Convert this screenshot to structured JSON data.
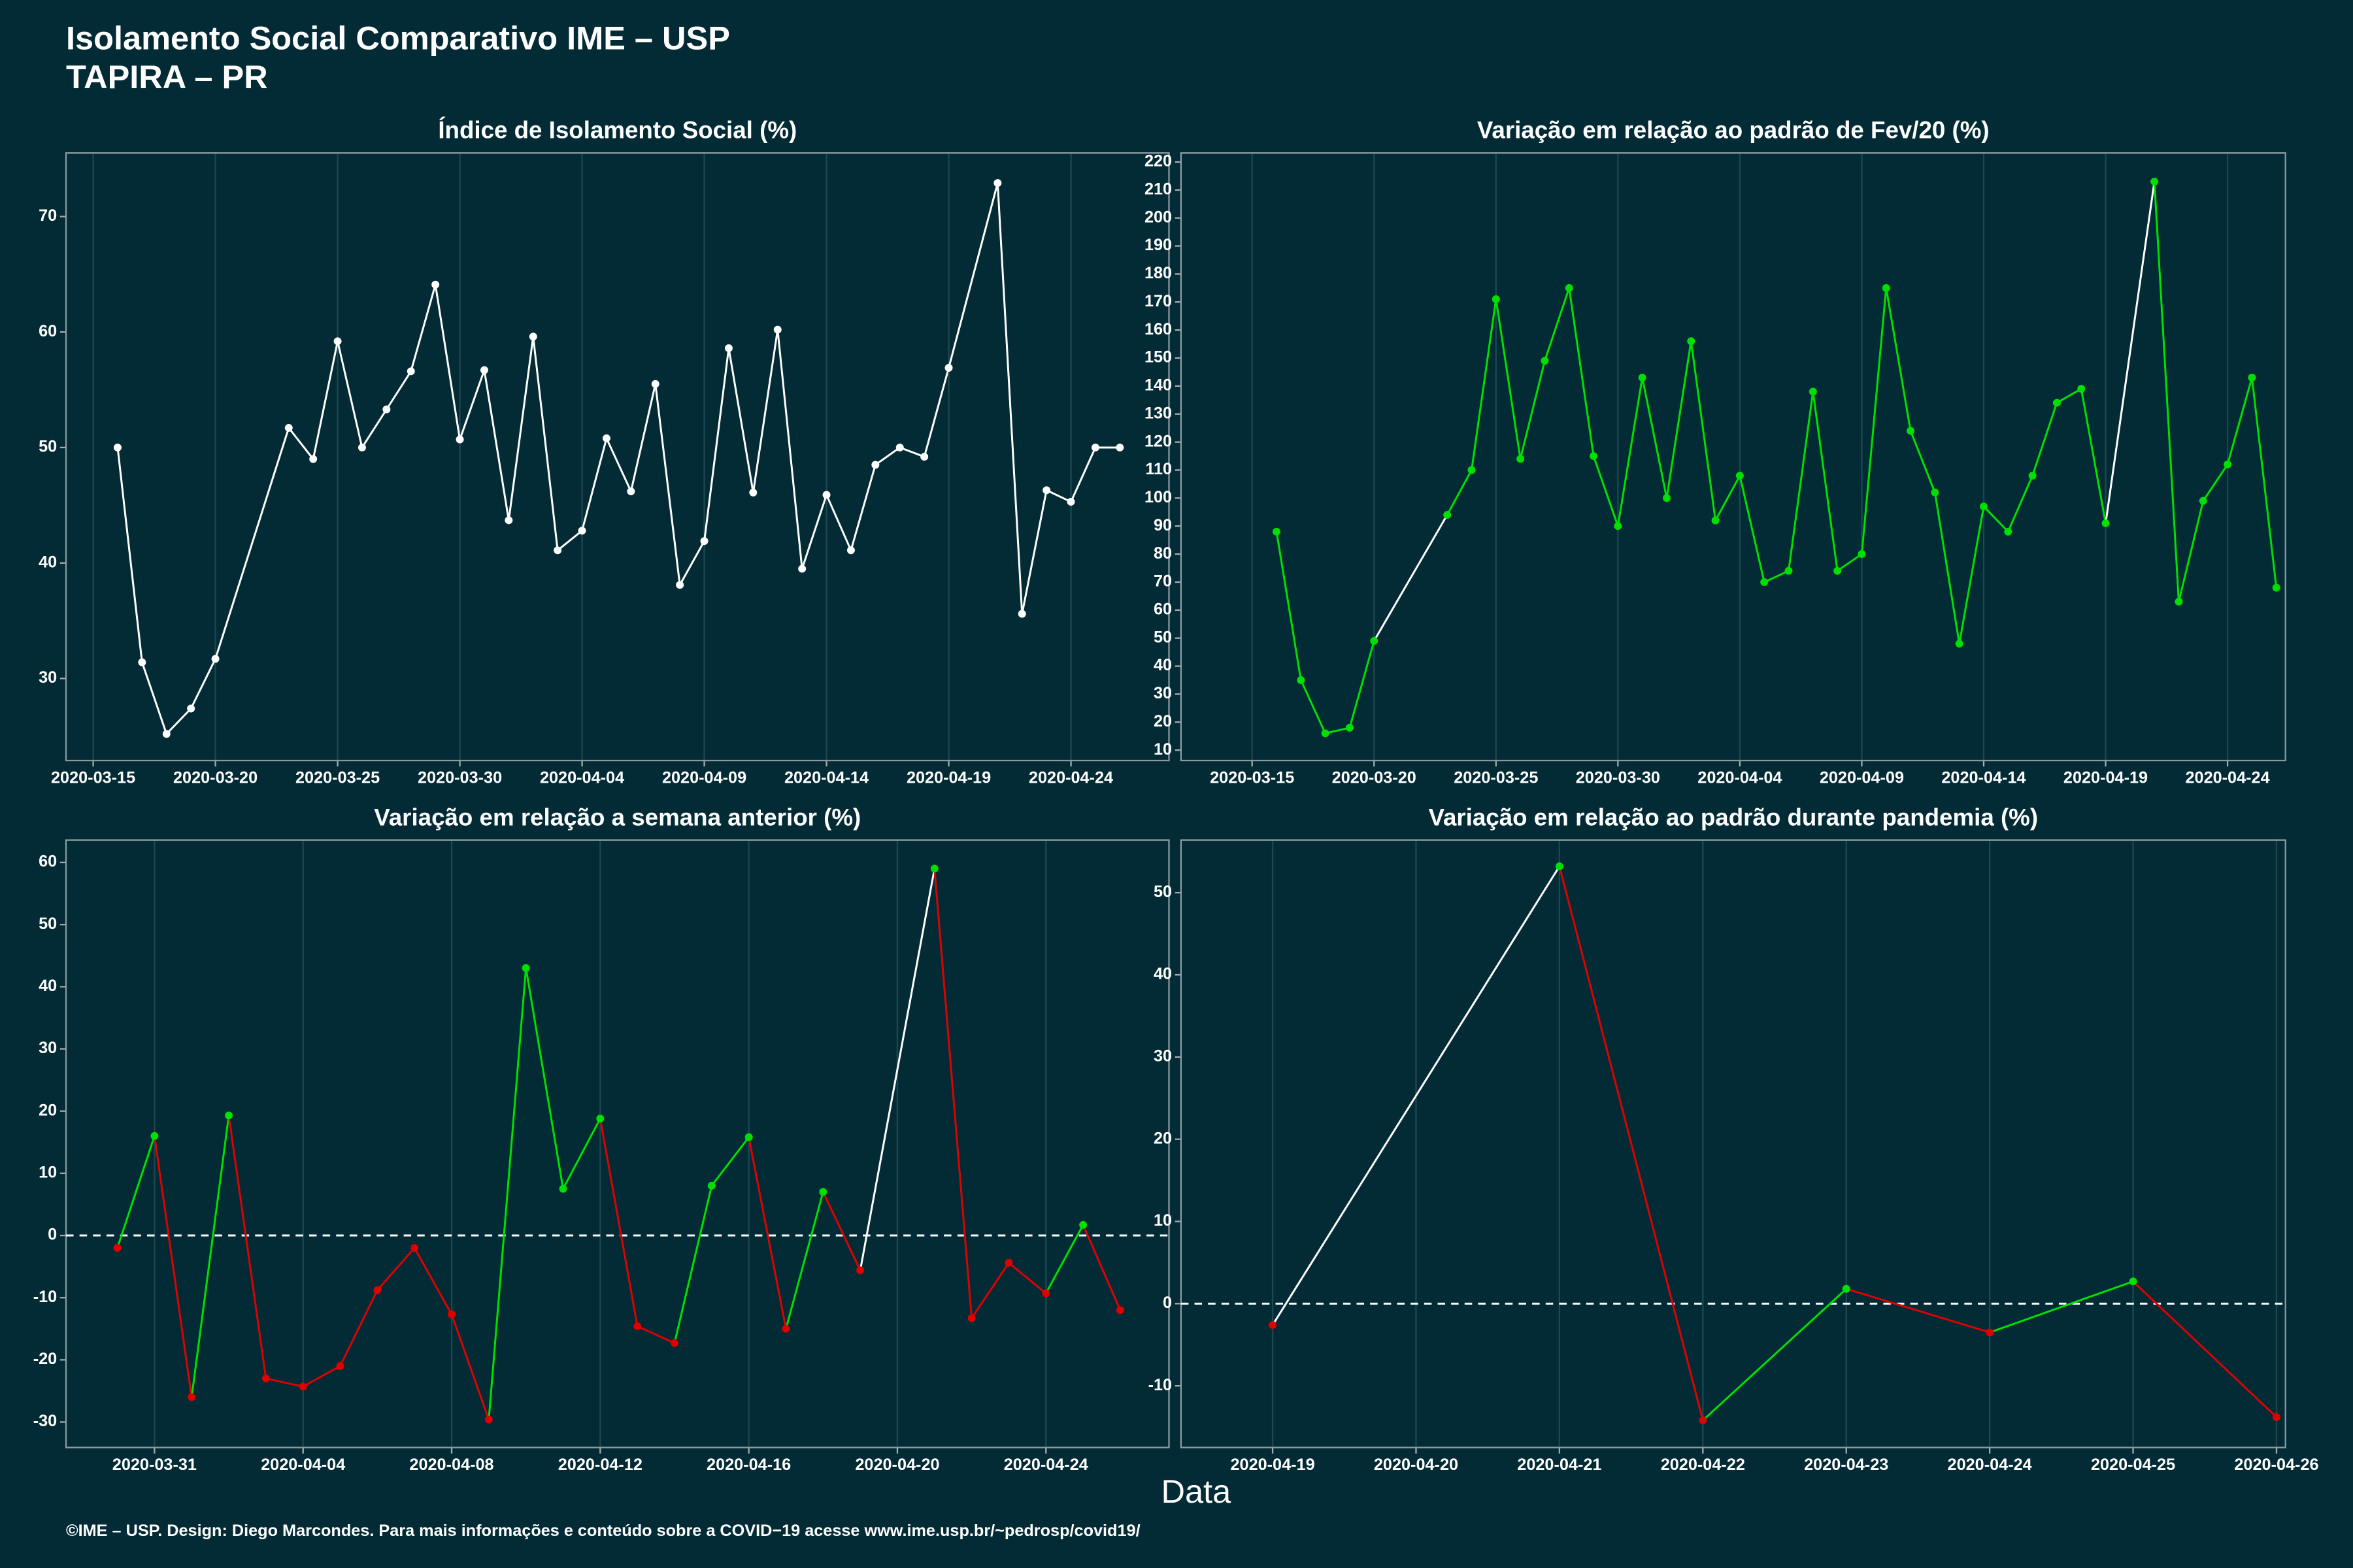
{
  "page": {
    "title": "Isolamento Social Comparativo IME – USP",
    "subtitle": "TAPIRA – PR",
    "xlabel": "Data",
    "caption": "©IME – USP. Design: Diego Marcondes. Para mais informações e conteúdo sobre a COVID−19 acesse www.ime.usp.br/~pedrosp/covid19/"
  },
  "chart_data": [
    {
      "type": "line",
      "title": "Índice de Isolamento Social (%)",
      "pos_color": "#ffffff",
      "x": [
        "2020-03-16",
        "2020-03-17",
        "2020-03-18",
        "2020-03-19",
        "2020-03-20",
        "2020-03-23",
        "2020-03-24",
        "2020-03-25",
        "2020-03-26",
        "2020-03-27",
        "2020-03-28",
        "2020-03-29",
        "2020-03-30",
        "2020-03-31",
        "2020-04-01",
        "2020-04-02",
        "2020-04-03",
        "2020-04-04",
        "2020-04-05",
        "2020-04-06",
        "2020-04-07",
        "2020-04-08",
        "2020-04-09",
        "2020-04-10",
        "2020-04-11",
        "2020-04-12",
        "2020-04-13",
        "2020-04-14",
        "2020-04-15",
        "2020-04-16",
        "2020-04-17",
        "2020-04-18",
        "2020-04-19",
        "2020-04-21",
        "2020-04-22",
        "2020-04-23",
        "2020-04-24",
        "2020-04-25",
        "2020-04-26"
      ],
      "values": [
        50,
        31.4,
        25.2,
        27.4,
        31.7,
        51.7,
        49,
        59.2,
        50,
        53.3,
        56.6,
        64.1,
        50.7,
        56.7,
        43.7,
        59.6,
        41.1,
        42.8,
        50.8,
        46.2,
        55.5,
        38.1,
        41.9,
        58.6,
        46.1,
        60.2,
        39.5,
        45.9,
        41.1,
        48.5,
        50,
        49.2,
        56.9,
        72.9,
        35.6,
        46.3,
        45.3,
        50,
        50
      ],
      "xlim": [
        "2020-03-13T21:20:00Z",
        "2020-04-28T00:15:00Z"
      ],
      "xticks": [
        "2020-03-15",
        "2020-03-20",
        "2020-03-25",
        "2020-03-30",
        "2020-04-04",
        "2020-04-09",
        "2020-04-14",
        "2020-04-19",
        "2020-04-24"
      ],
      "ylim": [
        22.9,
        75.5
      ],
      "yticks": [
        30,
        40,
        50,
        60,
        70
      ]
    },
    {
      "type": "line",
      "title": "Variação em relação ao padrão de Fev/20 (%)",
      "pos_color": "#00e000",
      "gap_color": "#ffffff",
      "x": [
        "2020-03-16",
        "2020-03-17",
        "2020-03-18",
        "2020-03-19",
        "2020-03-20",
        "2020-03-23",
        "2020-03-24",
        "2020-03-25",
        "2020-03-26",
        "2020-03-27",
        "2020-03-28",
        "2020-03-29",
        "2020-03-30",
        "2020-03-31",
        "2020-04-01",
        "2020-04-02",
        "2020-04-03",
        "2020-04-04",
        "2020-04-05",
        "2020-04-06",
        "2020-04-07",
        "2020-04-08",
        "2020-04-09",
        "2020-04-10",
        "2020-04-11",
        "2020-04-12",
        "2020-04-13",
        "2020-04-14",
        "2020-04-15",
        "2020-04-16",
        "2020-04-17",
        "2020-04-18",
        "2020-04-19",
        "2020-04-21",
        "2020-04-22",
        "2020-04-23",
        "2020-04-24",
        "2020-04-25",
        "2020-04-26"
      ],
      "values": [
        88,
        35,
        16,
        18,
        49,
        94,
        110,
        171,
        114,
        149,
        175,
        115,
        90,
        143,
        100,
        156,
        92,
        108,
        70,
        74,
        138,
        74,
        80,
        175,
        124,
        102,
        48,
        97,
        88,
        108,
        134,
        139,
        91,
        213,
        63,
        99,
        112,
        143,
        68
      ],
      "xlim": [
        "2020-03-12T02:00:00Z",
        "2020-04-26T09:00:00Z"
      ],
      "xticks": [
        "2020-03-15",
        "2020-03-20",
        "2020-03-25",
        "2020-03-30",
        "2020-04-04",
        "2020-04-09",
        "2020-04-14",
        "2020-04-19",
        "2020-04-24"
      ],
      "ylim": [
        6.3,
        223.2
      ],
      "yticks": [
        10,
        20,
        30,
        40,
        50,
        60,
        70,
        80,
        90,
        100,
        110,
        120,
        130,
        140,
        150,
        160,
        170,
        180,
        190,
        200,
        210,
        220
      ]
    },
    {
      "type": "line",
      "title": "Variação em relação a semana anterior (%)",
      "pos_color": "#00e000",
      "neg_color": "#e00000",
      "gap_color": "#ffffff",
      "hline": 0,
      "x": [
        "2020-03-30",
        "2020-03-31",
        "2020-04-01",
        "2020-04-02",
        "2020-04-03",
        "2020-04-04",
        "2020-04-05",
        "2020-04-06",
        "2020-04-07",
        "2020-04-08",
        "2020-04-09",
        "2020-04-10",
        "2020-04-11",
        "2020-04-12",
        "2020-04-13",
        "2020-04-14",
        "2020-04-15",
        "2020-04-16",
        "2020-04-17",
        "2020-04-18",
        "2020-04-19",
        "2020-04-21",
        "2020-04-22",
        "2020-04-23",
        "2020-04-24",
        "2020-04-25",
        "2020-04-26"
      ],
      "values": [
        -2,
        16,
        -26,
        19.3,
        -23,
        -24.3,
        -21,
        -8.8,
        -2,
        -12.7,
        -29.6,
        43,
        7.5,
        18.8,
        -14.6,
        -17.3,
        8,
        15.8,
        -15,
        7,
        -5.6,
        59,
        -13.3,
        -4.4,
        -9.3,
        1.7,
        -12
      ],
      "xlim": [
        "2020-03-28T14:50:00Z",
        "2020-04-27T07:30:00Z"
      ],
      "xticks": [
        "2020-03-31",
        "2020-04-04",
        "2020-04-08",
        "2020-04-12",
        "2020-04-16",
        "2020-04-20",
        "2020-04-24"
      ],
      "ylim": [
        -34.1,
        63.6
      ],
      "yticks": [
        -30,
        -20,
        -10,
        0,
        10,
        20,
        30,
        40,
        50,
        60
      ]
    },
    {
      "type": "line",
      "title": "Variação em relação ao padrão durante pandemia (%)",
      "pos_color": "#00e000",
      "neg_color": "#e00000",
      "gap_color": "#ffffff",
      "hline": 0,
      "x": [
        "2020-04-19",
        "2020-04-21",
        "2020-04-22",
        "2020-04-23",
        "2020-04-24",
        "2020-04-25",
        "2020-04-26"
      ],
      "values": [
        -2.6,
        53.2,
        -14.2,
        1.8,
        -3.5,
        2.7,
        -13.8
      ],
      "xlim": [
        "2020-04-18T08:40:00Z",
        "2020-04-26T01:30:00Z"
      ],
      "xticks": [
        "2020-04-19",
        "2020-04-20",
        "2020-04-21",
        "2020-04-22",
        "2020-04-23",
        "2020-04-24",
        "2020-04-25",
        "2020-04-26"
      ],
      "ylim": [
        -17.5,
        56.4
      ],
      "yticks": [
        -10,
        0,
        10,
        20,
        30,
        40,
        50
      ]
    }
  ]
}
